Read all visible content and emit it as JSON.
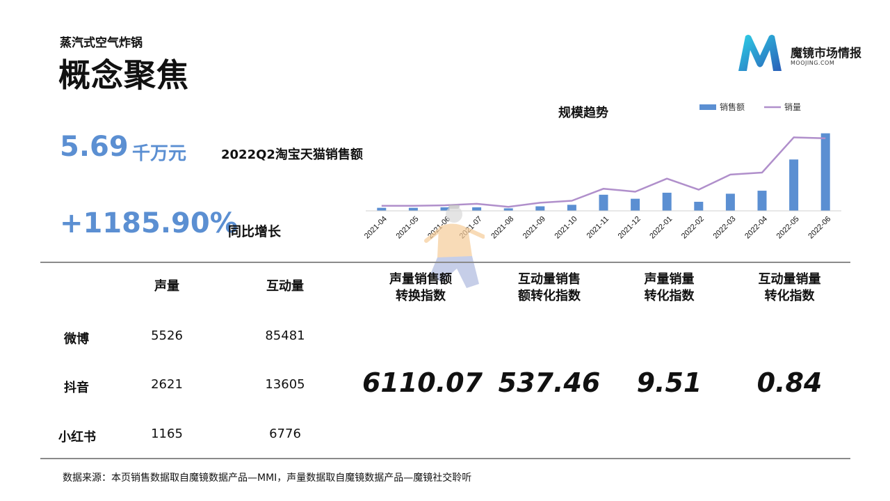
{
  "header": {
    "subtitle": "蒸汽式空气炸锅",
    "title": "概念聚焦"
  },
  "logo": {
    "name": "魔镜市场情报",
    "url_text": "MOOJING.COM",
    "colors": {
      "start": "#2ab6dc",
      "end": "#2a5fb8"
    }
  },
  "kpi": {
    "value": "5.69",
    "unit": "千万元",
    "label": "2022Q2淘宝天猫销售额",
    "growth_value": "+1185.90%",
    "growth_label": "同比增长"
  },
  "chart_data": {
    "type": "bar",
    "title": "规模趋势",
    "legend_position": "top-right",
    "categories": [
      "2021-04",
      "2021-05",
      "2021-06",
      "2021-07",
      "2021-08",
      "2021-09",
      "2021-10",
      "2021-11",
      "2021-12",
      "2022-01",
      "2022-02",
      "2022-03",
      "2022-04",
      "2022-05",
      "2022-06"
    ],
    "series": [
      {
        "name": "销售额",
        "type": "bar",
        "color": "#5b8fd2",
        "values": [
          3,
          3,
          3.5,
          3.5,
          2.5,
          4.5,
          6,
          16,
          12,
          18,
          9,
          17,
          20,
          51,
          77
        ]
      },
      {
        "name": "销量",
        "type": "line",
        "color": "#b08fcb",
        "values": [
          5,
          5,
          5.5,
          7,
          4,
          8,
          10,
          22,
          19,
          32,
          21,
          36,
          38,
          73,
          72
        ]
      }
    ],
    "ylim": [
      0,
      85
    ],
    "grid": false
  },
  "table": {
    "headers": {
      "voice": "声量",
      "interaction": "互动量"
    },
    "rows": [
      {
        "platform": "微博",
        "voice": "5526",
        "interaction": "85481"
      },
      {
        "platform": "抖音",
        "voice": "2621",
        "interaction": "13605"
      },
      {
        "platform": "小红书",
        "voice": "1165",
        "interaction": "6776"
      }
    ]
  },
  "indices": [
    {
      "label_line1": "声量销售额",
      "label_line2": "转换指数",
      "value": "6110.07"
    },
    {
      "label_line1": "互动量销售",
      "label_line2": "额转化指数",
      "value": "537.46"
    },
    {
      "label_line1": "声量销量",
      "label_line2": "转化指数",
      "value": "9.51"
    },
    {
      "label_line1": "互动量销量",
      "label_line2": "转化指数",
      "value": "0.84"
    }
  ],
  "footer": "数据来源：本页销售数据取自魔镜数据产品—MMI，声量数据取自魔镜数据产品—魔镜社交聆听"
}
